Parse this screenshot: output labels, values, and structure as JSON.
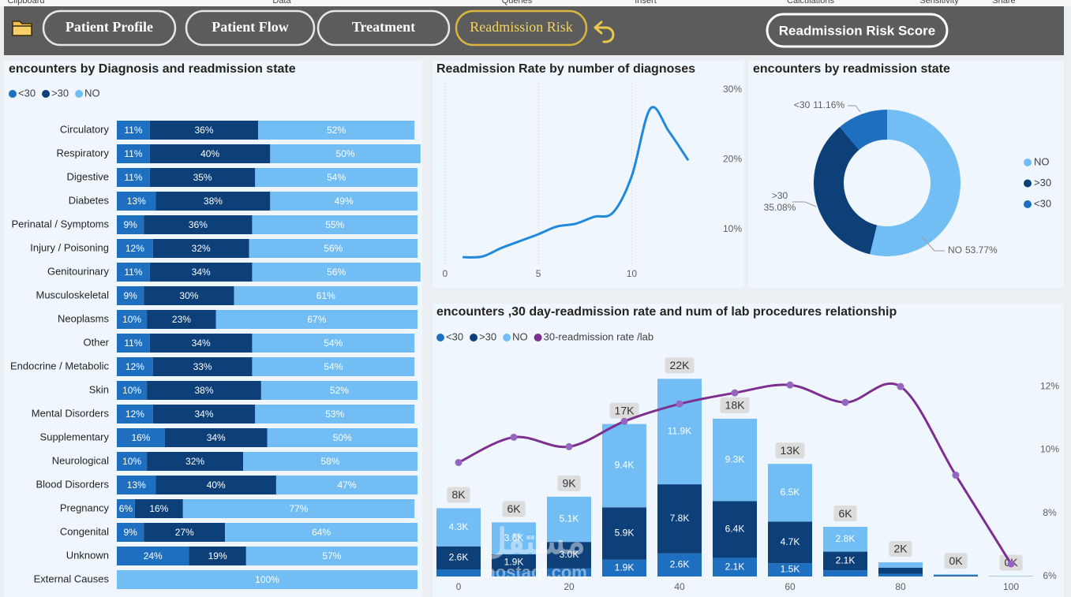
{
  "ribbon": [
    "Clipboard",
    "Data",
    "Queries",
    "Insert",
    "Calculations",
    "Sensitivity",
    "Share"
  ],
  "nav": {
    "buttons": [
      "Patient Profile",
      "Patient Flow",
      "Treatment",
      "Readmission Risk"
    ],
    "score_button": "Readmission Risk Score"
  },
  "watermark": {
    "logo": "مستقل",
    "site": "mostaql.com"
  },
  "chart_data": [
    {
      "type": "bar",
      "orientation": "horizontal",
      "stacked": true,
      "title": "encounters by Diagnosis and readmission state",
      "legend": "top-left",
      "categories": [
        "Circulatory",
        "Respiratory",
        "Digestive",
        "Diabetes",
        "Perinatal / Symptoms",
        "Injury / Poisoning",
        "Genitourinary",
        "Musculoskeletal",
        "Neoplasms",
        "Other",
        "Endocrine / Metabolic",
        "Skin",
        "Mental Disorders",
        "Supplementary",
        "Neurological",
        "Blood Disorders",
        "Pregnancy",
        "Congenital",
        "Unknown",
        "External Causes"
      ],
      "xlim": [
        0,
        100
      ],
      "series": [
        {
          "name": "<30",
          "color": "#1f6fc1",
          "values": [
            11,
            11,
            11,
            13,
            9,
            12,
            11,
            9,
            10,
            11,
            12,
            10,
            12,
            16,
            10,
            13,
            6,
            9,
            24,
            0
          ],
          "value_labels": [
            "11%",
            "11%",
            "11%",
            "13%",
            "9%",
            "12%",
            "11%",
            "9%",
            "10%",
            "11%",
            "12%",
            "10%",
            "12%",
            "16%",
            "10%",
            "13%",
            "6%",
            "9%",
            "24%",
            null
          ]
        },
        {
          "name": ">30",
          "color": "#0d3f78",
          "values": [
            36,
            40,
            35,
            38,
            36,
            32,
            34,
            30,
            23,
            34,
            33,
            38,
            34,
            34,
            32,
            40,
            16,
            27,
            19,
            0
          ],
          "value_labels": [
            "36%",
            "40%",
            "35%",
            "38%",
            "36%",
            "32%",
            "34%",
            "30%",
            "23%",
            "34%",
            "33%",
            "38%",
            "34%",
            "34%",
            "32%",
            "40%",
            "16%",
            "27%",
            "19%",
            null
          ]
        },
        {
          "name": "NO",
          "color": "#72bdf3",
          "values": [
            52,
            50,
            54,
            49,
            55,
            56,
            56,
            61,
            67,
            54,
            54,
            52,
            53,
            50,
            58,
            47,
            77,
            64,
            57,
            100
          ],
          "value_labels": [
            "52%",
            "50%",
            "54%",
            "49%",
            "55%",
            "56%",
            "56%",
            "61%",
            "67%",
            "54%",
            "54%",
            "52%",
            "53%",
            "50%",
            "58%",
            "47%",
            "77%",
            "64%",
            "57%",
            "100%"
          ]
        }
      ]
    },
    {
      "type": "line",
      "title": "Readmission Rate by number of diagnoses",
      "x": [
        1,
        2,
        3,
        4,
        5,
        6,
        7,
        8,
        9,
        10,
        11,
        12,
        13
      ],
      "values": [
        6.0,
        6.1,
        7.3,
        8.3,
        9.3,
        10.4,
        10.8,
        11.8,
        12.4,
        17.6,
        27.3,
        24.0,
        20.0
      ],
      "color": "#2189dc",
      "xlim": [
        -0.5,
        14
      ],
      "xticks": [
        0,
        5,
        10
      ],
      "ylim": [
        5,
        31
      ],
      "yticks": [
        {
          "value": 10,
          "label": "10%"
        },
        {
          "value": 20,
          "label": "20%"
        },
        {
          "value": 30,
          "label": "30%"
        }
      ],
      "y_axis_side": "right",
      "grid": true
    },
    {
      "type": "pie",
      "donut": true,
      "title": "encounters by readmission state",
      "legend": "right",
      "categories": [
        "NO",
        ">30",
        "<30"
      ],
      "values": [
        53.77,
        35.08,
        11.16
      ],
      "value_labels": [
        "53.77%",
        "35.08%",
        "11.16%"
      ],
      "colors": [
        "#72bdf3",
        "#0d3f78",
        "#1f6fc1"
      ]
    },
    {
      "type": "combo",
      "title": "encounters ,30 day-readmission rate and num of lab procedures relationship",
      "legend": "top-left",
      "x": [
        0,
        10,
        20,
        30,
        40,
        50,
        60,
        70,
        80,
        90,
        100
      ],
      "xlim": [
        -4,
        103
      ],
      "xticks": [
        0,
        20,
        40,
        60,
        80,
        100
      ],
      "ylim": [
        0,
        25
      ],
      "y2lim": [
        6,
        13
      ],
      "y2ticks": [
        {
          "value": 6,
          "label": "6%"
        },
        {
          "value": 8,
          "label": "8%"
        },
        {
          "value": 10,
          "label": "10%"
        },
        {
          "value": 12,
          "label": "12%"
        }
      ],
      "total_labels": [
        "8K",
        "6K",
        "9K",
        "17K",
        "22K",
        "18K",
        "13K",
        "6K",
        "2K",
        "0K",
        "0K"
      ],
      "series": [
        {
          "name": "<30",
          "type": "bar",
          "color": "#1f6fc1",
          "values": [
            0.8,
            0.6,
            0.9,
            1.9,
            2.6,
            2.1,
            1.5,
            0.7,
            0.3,
            0.05,
            0.01
          ],
          "value_labels": [
            null,
            null,
            null,
            "1.9K",
            "2.6K",
            "2.1K",
            "1.5K",
            null,
            null,
            null,
            null
          ]
        },
        {
          "name": ">30",
          "type": "bar",
          "color": "#0d3f78",
          "values": [
            2.6,
            1.9,
            3.0,
            5.9,
            7.8,
            6.4,
            4.7,
            2.1,
            0.7,
            0.1,
            0.02
          ],
          "value_labels": [
            "2.6K",
            "1.9K",
            "3.0K",
            "5.9K",
            "7.8K",
            "6.4K",
            "4.7K",
            "2.1K",
            null,
            null,
            null
          ]
        },
        {
          "name": "NO",
          "type": "bar",
          "color": "#72bdf3",
          "values": [
            4.3,
            3.6,
            5.1,
            9.4,
            11.9,
            9.3,
            6.5,
            2.8,
            0.6,
            0.1,
            0.02
          ],
          "value_labels": [
            "4.3K",
            "3.6K",
            "5.1K",
            "9.4K",
            "11.9K",
            "9.3K",
            "6.5K",
            "2.8K",
            null,
            null,
            null
          ]
        },
        {
          "name": "30-readmission rate /lab",
          "type": "line",
          "axis": "y2",
          "color": "#7d2f8f",
          "values": [
            9.6,
            10.4,
            10.1,
            10.9,
            11.45,
            11.8,
            12.05,
            11.5,
            12.0,
            9.2,
            6.4
          ]
        }
      ]
    }
  ]
}
